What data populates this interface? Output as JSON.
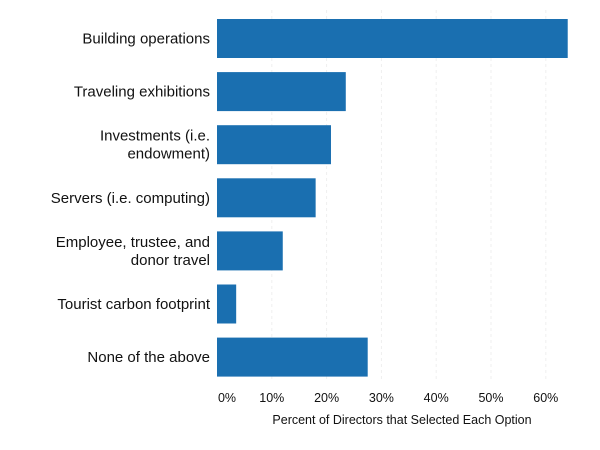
{
  "chart_data": {
    "type": "bar",
    "orientation": "horizontal",
    "categories": [
      [
        "Building operations"
      ],
      [
        "Traveling exhibitions"
      ],
      [
        "Investments (i.e.",
        "endowment)"
      ],
      [
        "Servers (i.e. computing)"
      ],
      [
        "Employee, trustee, and",
        "donor travel"
      ],
      [
        "Tourist carbon footprint"
      ],
      [
        "None of the above"
      ]
    ],
    "values": [
      64,
      23.5,
      20.8,
      18,
      12,
      3.5,
      27.5
    ],
    "value_unit": "%",
    "xlabel": "Percent of Directors that Selected Each Option",
    "ylabel": "",
    "xlim": [
      0,
      65
    ],
    "ticks": [
      0,
      10,
      20,
      30,
      40,
      50,
      60
    ],
    "tick_labels": [
      "0%",
      "10%",
      "20%",
      "30%",
      "40%",
      "50%",
      "60%"
    ],
    "bar_color": "#1a6fb0",
    "grid": true,
    "legend": "none"
  }
}
